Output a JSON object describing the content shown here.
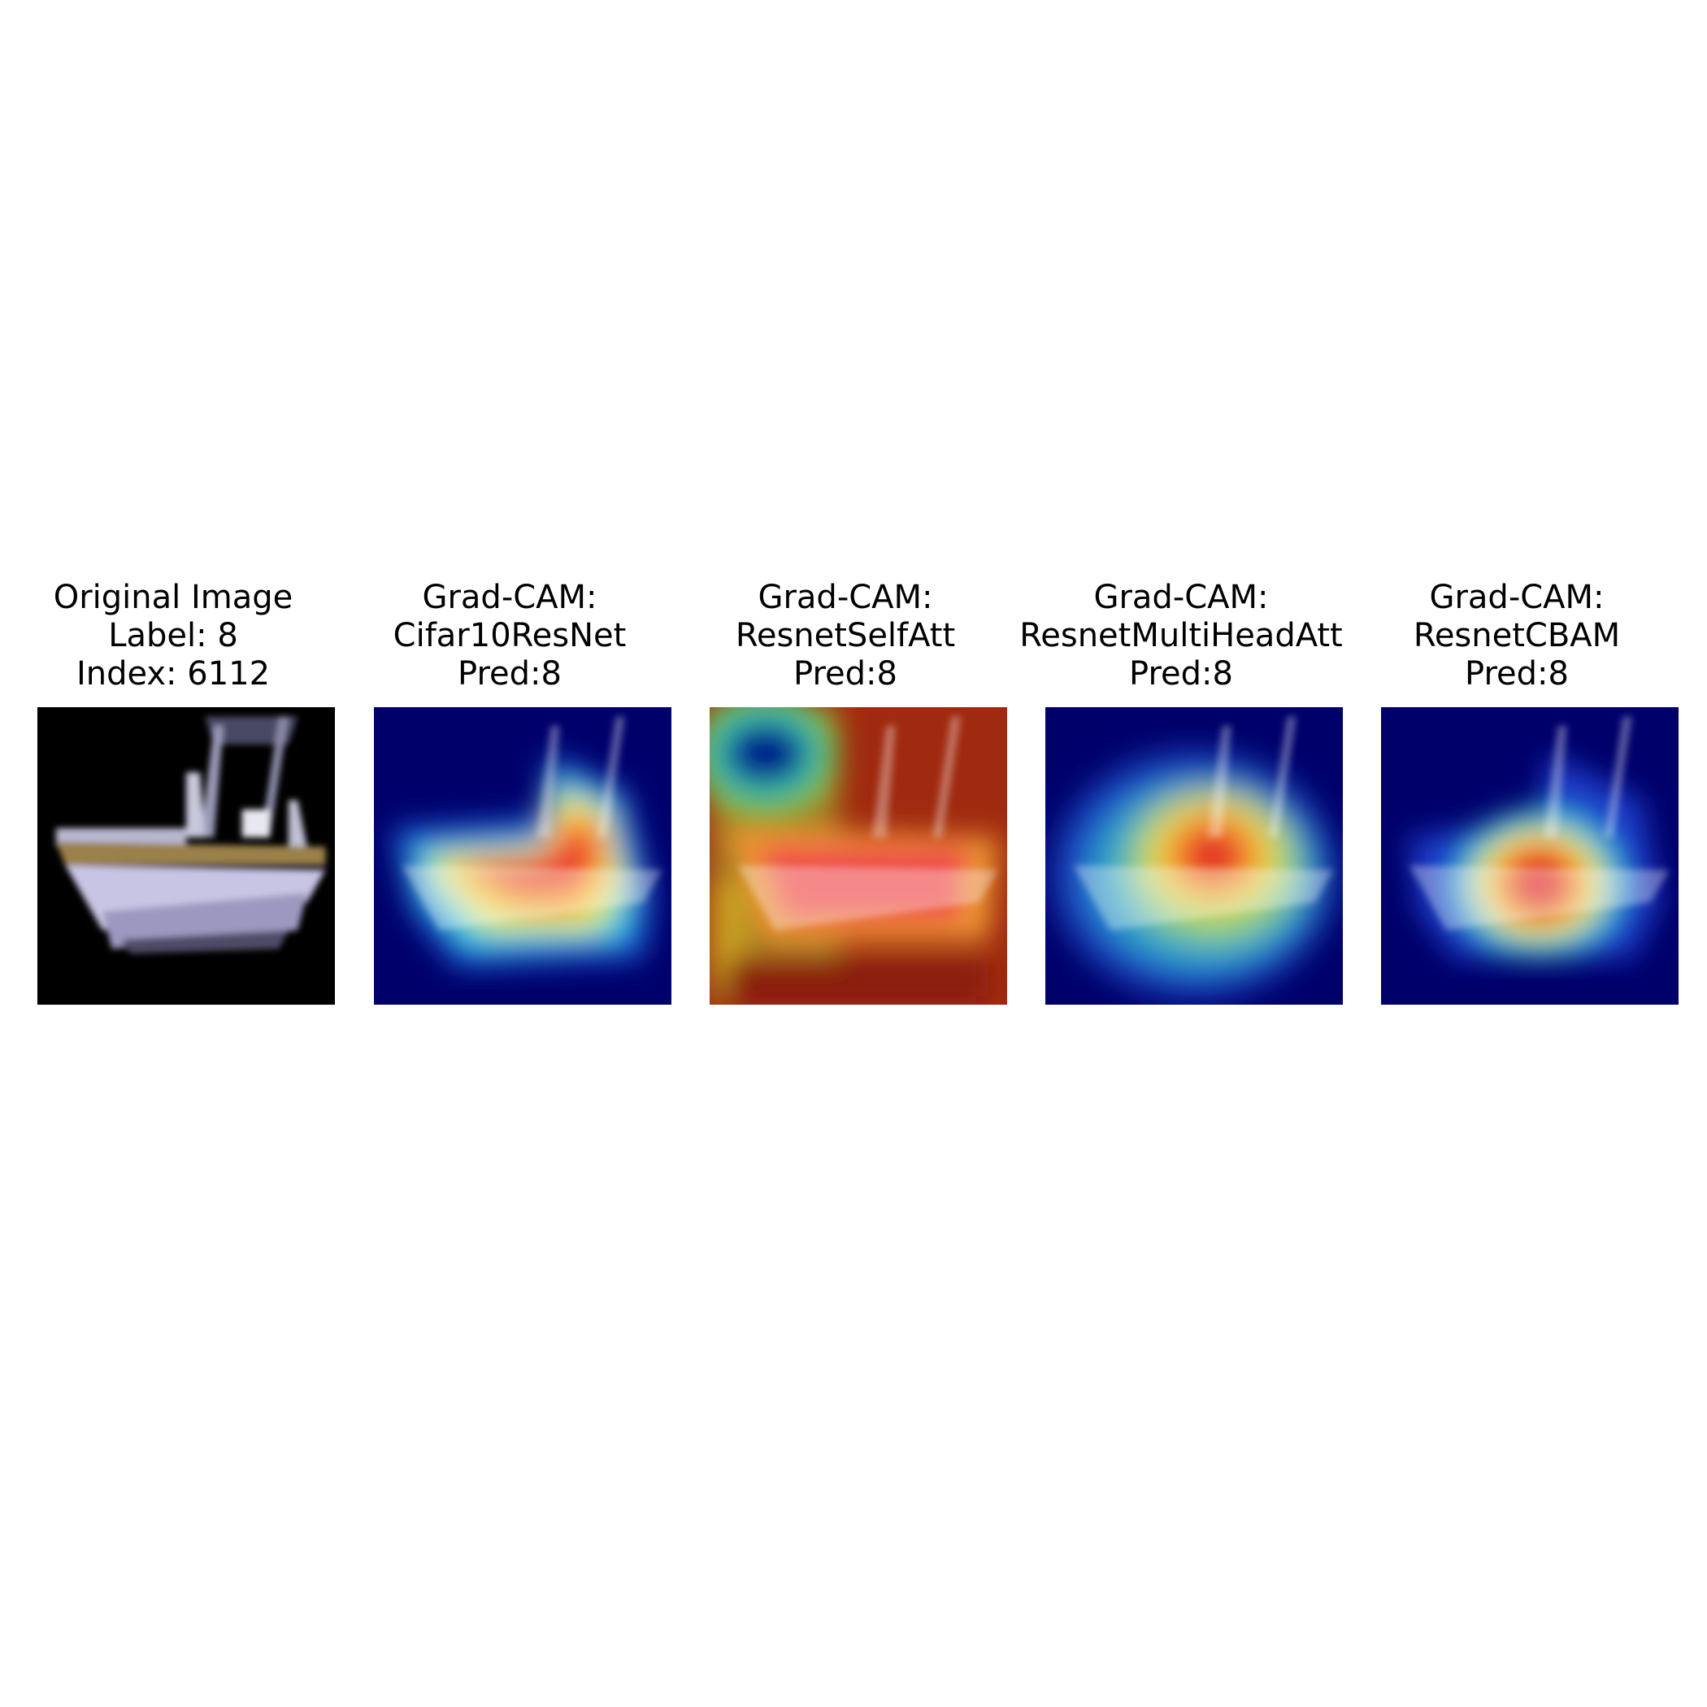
{
  "panels": [
    {
      "lines": [
        "Original Image",
        "Label: 8",
        "Index: 6112"
      ],
      "kind": "original"
    },
    {
      "lines": [
        "Grad-CAM:",
        "Cifar10ResNet",
        "Pred:8"
      ],
      "kind": "cam"
    },
    {
      "lines": [
        "Grad-CAM:",
        "ResnetSelfAtt",
        "Pred:8"
      ],
      "kind": "cam"
    },
    {
      "lines": [
        "Grad-CAM:",
        "ResnetMultiHeadAtt",
        "Pred:8"
      ],
      "kind": "cam"
    },
    {
      "lines": [
        "Grad-CAM:",
        "ResnetCBAM",
        "Pred:8"
      ],
      "kind": "cam"
    }
  ],
  "colors": {
    "background": "#000000",
    "cam_low": "#00006b",
    "cam_high": "#ff2a2a"
  }
}
